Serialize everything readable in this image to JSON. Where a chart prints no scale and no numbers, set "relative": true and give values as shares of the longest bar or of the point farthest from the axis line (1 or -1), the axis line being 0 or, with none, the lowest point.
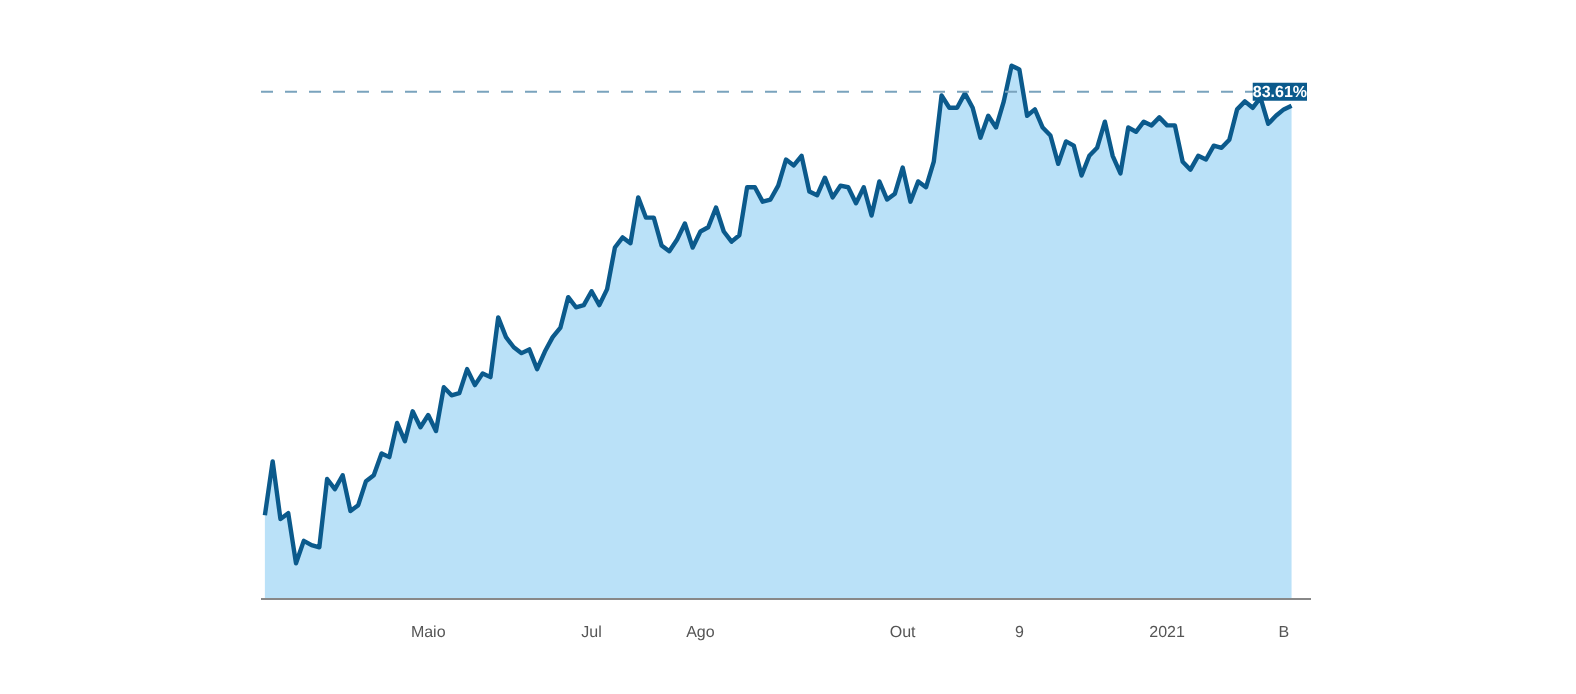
{
  "chart_data": {
    "type": "area",
    "relative": true,
    "grid": false,
    "tick_labels": "x",
    "line_style": "solid",
    "categories": [
      null,
      null,
      null,
      null,
      null,
      null,
      null,
      null,
      null,
      null,
      null,
      null,
      null,
      null,
      null,
      null,
      null,
      null,
      null,
      null,
      null,
      "Maio",
      null,
      null,
      null,
      null,
      null,
      null,
      null,
      null,
      null,
      null,
      null,
      null,
      null,
      null,
      null,
      null,
      null,
      null,
      null,
      null,
      "Jul",
      null,
      null,
      null,
      null,
      null,
      null,
      null,
      null,
      null,
      null,
      null,
      null,
      null,
      "Ago",
      null,
      null,
      null,
      null,
      null,
      null,
      null,
      null,
      null,
      null,
      null,
      null,
      null,
      null,
      null,
      null,
      null,
      null,
      null,
      null,
      null,
      null,
      null,
      null,
      null,
      "Out",
      null,
      null,
      null,
      null,
      null,
      null,
      null,
      null,
      null,
      null,
      null,
      null,
      null,
      null,
      "9",
      null,
      null,
      null,
      null,
      null,
      null,
      null,
      null,
      null,
      null,
      null,
      null,
      null,
      null,
      null,
      null,
      null,
      null,
      "2021",
      null,
      null,
      null,
      null,
      null,
      null,
      null,
      null,
      null,
      null,
      null,
      null,
      null,
      null,
      "B",
      null
    ],
    "ref_lines": [
      {
        "axis": "y",
        "value": 0.951,
        "color": "#7aa3bd",
        "line_style": "dashed"
      }
    ],
    "annotations": [
      "83.61%"
    ],
    "series": [
      {
        "color": "#0b5a8c",
        "values": [
          0.157,
          0.258,
          0.15,
          0.161,
          0.067,
          0.109,
          0.101,
          0.097,
          0.225,
          0.206,
          0.232,
          0.165,
          0.176,
          0.221,
          0.232,
          0.273,
          0.266,
          0.33,
          0.296,
          0.352,
          0.322,
          0.345,
          0.315,
          0.397,
          0.382,
          0.386,
          0.431,
          0.401,
          0.423,
          0.416,
          0.528,
          0.491,
          0.472,
          0.461,
          0.468,
          0.431,
          0.464,
          0.491,
          0.509,
          0.566,
          0.547,
          0.551,
          0.577,
          0.551,
          0.581,
          0.659,
          0.678,
          0.667,
          0.753,
          0.715,
          0.715,
          0.663,
          0.652,
          0.674,
          0.704,
          0.659,
          0.689,
          0.697,
          0.734,
          0.689,
          0.67,
          0.682,
          0.772,
          0.772,
          0.745,
          0.749,
          0.775,
          0.824,
          0.813,
          0.831,
          0.764,
          0.757,
          0.79,
          0.753,
          0.775,
          0.772,
          0.742,
          0.772,
          0.719,
          0.783,
          0.749,
          0.76,
          0.809,
          0.745,
          0.783,
          0.772,
          0.82,
          0.944,
          0.921,
          0.921,
          0.948,
          0.921,
          0.865,
          0.906,
          0.884,
          0.933,
          1.0,
          0.993,
          0.906,
          0.918,
          0.884,
          0.869,
          0.816,
          0.858,
          0.85,
          0.794,
          0.831,
          0.846,
          0.895,
          0.831,
          0.798,
          0.884,
          0.876,
          0.895,
          0.888,
          0.903,
          0.888,
          0.888,
          0.82,
          0.805,
          0.831,
          0.824,
          0.85,
          0.846,
          0.861,
          0.918,
          0.933,
          0.921,
          0.94,
          0.891,
          0.906,
          0.918,
          0.925
        ]
      }
    ]
  }
}
